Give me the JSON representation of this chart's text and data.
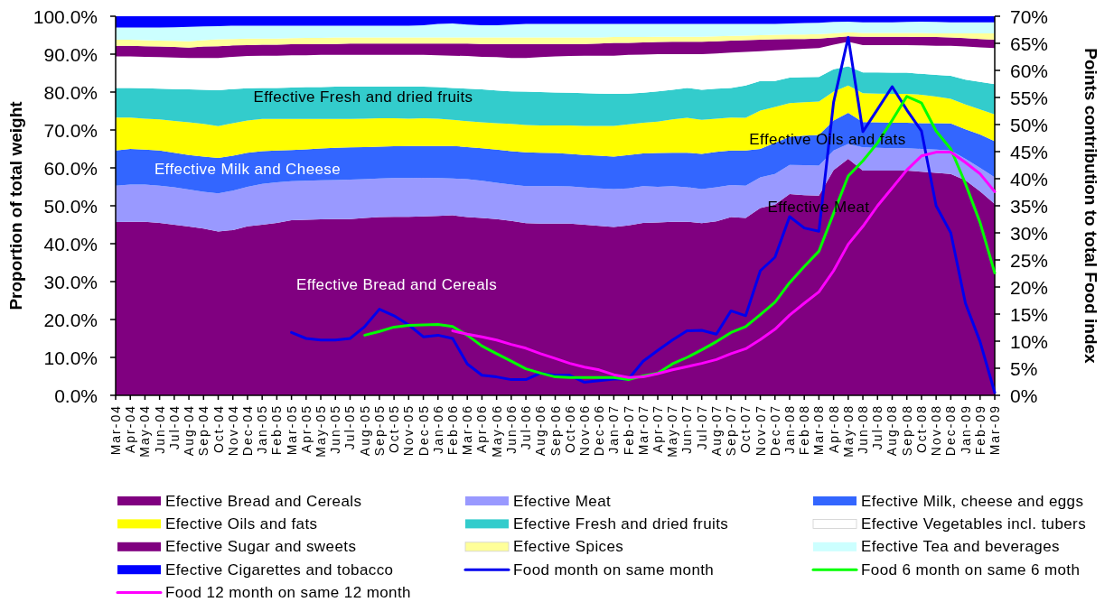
{
  "chart_data": {
    "type": "area",
    "stacked": true,
    "categories": [
      "Mar-04",
      "Apr-04",
      "May-04",
      "Jun-04",
      "Jul-04",
      "Aug-04",
      "Sep-04",
      "Oct-04",
      "Nov-04",
      "Dec-04",
      "Jan-05",
      "Feb-05",
      "Mar-05",
      "Apr-05",
      "May-05",
      "Jun-05",
      "Jul-05",
      "Aug-05",
      "Sep-05",
      "Oct-05",
      "Nov-05",
      "Dec-05",
      "Jan-06",
      "Feb-06",
      "Mar-06",
      "Apr-06",
      "May-06",
      "Jun-06",
      "Jul-06",
      "Aug-06",
      "Sep-06",
      "Oct-06",
      "Nov-06",
      "Dec-06",
      "Jan-07",
      "Feb-07",
      "Mar-07",
      "Apr-07",
      "May-07",
      "Jun-07",
      "Jul-07",
      "Aug-07",
      "Sep-07",
      "Oct-07",
      "Nov-07",
      "Dec-07",
      "Jan-08",
      "Feb-08",
      "Mar-08",
      "Apr-08",
      "May-08",
      "Jun-08",
      "Jul-08",
      "Aug-08",
      "Sep-08",
      "Oct-08",
      "Nov-08",
      "Dec-08",
      "Jan-09",
      "Feb-09",
      "Mar-09"
    ],
    "ylabel": "Proportion of total weight",
    "y2label": "Points contribution to total Food index",
    "ylim": [
      0,
      100
    ],
    "yticks": [
      {
        "value": 0,
        "label": "0.0%"
      },
      {
        "value": 10,
        "label": "10.0%"
      },
      {
        "value": 20,
        "label": "20.0%"
      },
      {
        "value": 30,
        "label": "30.0%"
      },
      {
        "value": 40,
        "label": "40.0%"
      },
      {
        "value": 50,
        "label": "50.0%"
      },
      {
        "value": 60,
        "label": "60.0%"
      },
      {
        "value": 70,
        "label": "70.0%"
      },
      {
        "value": 80,
        "label": "80.0%"
      },
      {
        "value": 90,
        "label": "90.0%"
      },
      {
        "value": 100,
        "label": "100.0%"
      }
    ],
    "y2lim": [
      0,
      70
    ],
    "y2ticks": [
      {
        "value": 0,
        "label": "0%"
      },
      {
        "value": 5,
        "label": "5%"
      },
      {
        "value": 10,
        "label": "10%"
      },
      {
        "value": 15,
        "label": "15%"
      },
      {
        "value": 20,
        "label": "20%"
      },
      {
        "value": 25,
        "label": "25%"
      },
      {
        "value": 30,
        "label": "30%"
      },
      {
        "value": 35,
        "label": "35%"
      },
      {
        "value": 40,
        "label": "40%"
      },
      {
        "value": 45,
        "label": "45%"
      },
      {
        "value": 50,
        "label": "50%"
      },
      {
        "value": 55,
        "label": "55%"
      },
      {
        "value": 60,
        "label": "60%"
      },
      {
        "value": 65,
        "label": "65%"
      },
      {
        "value": 70,
        "label": "70%"
      }
    ],
    "legend": "bottom",
    "annotations": [
      "Effective Fresh and dried fruits",
      "Effective Oils and fats",
      "Effective Milk and Cheese",
      "Effective Meat",
      "Effective Bread and Cereals"
    ],
    "series": [
      {
        "name": "Efective Bread and Cereals",
        "color": "#800080",
        "values": [
          45.7,
          45.8,
          45.8,
          45.5,
          45.0,
          44.5,
          44.0,
          43.2,
          43.6,
          44.6,
          45.0,
          45.5,
          46.2,
          46.3,
          46.4,
          46.5,
          46.5,
          46.8,
          47.0,
          47.1,
          47.1,
          47.2,
          47.3,
          47.5,
          47.0,
          46.8,
          46.5,
          46.0,
          45.4,
          45.3,
          45.3,
          45.3,
          45.0,
          44.7,
          44.4,
          44.8,
          45.5,
          45.6,
          45.8,
          45.8,
          45.4,
          45.9,
          47.0,
          46.8,
          49.4,
          50.3,
          53.1,
          52.8,
          52.7,
          59.4,
          62.4,
          59.3,
          59.3,
          59.3,
          59.3,
          59.0,
          58.7,
          58.4,
          56.7,
          53.8,
          50.5
        ]
      },
      {
        "name": "Efective Meat",
        "color": "#9999ff",
        "values": [
          9.6,
          9.8,
          9.8,
          9.8,
          9.9,
          9.8,
          9.7,
          10.1,
          10.4,
          10.4,
          10.8,
          10.7,
          10.3,
          10.3,
          10.3,
          10.3,
          10.4,
          10.2,
          10.2,
          10.2,
          10.2,
          10.2,
          10.0,
          9.7,
          10.0,
          9.8,
          9.6,
          9.6,
          9.8,
          9.9,
          9.9,
          9.8,
          9.8,
          9.9,
          10.0,
          9.8,
          9.7,
          9.4,
          9.4,
          9.1,
          9.0,
          9.0,
          8.5,
          8.5,
          8.1,
          8.1,
          7.7,
          7.9,
          7.9,
          5.2,
          3.9,
          6.1,
          6.0,
          5.9,
          5.9,
          6.0,
          6.1,
          6.2,
          5.7,
          6.2,
          7.0
        ]
      },
      {
        "name": "Efective Milk, cheese and eggs",
        "color": "#3366ff",
        "values": [
          9.3,
          9.4,
          9.2,
          9.3,
          9.1,
          9.1,
          9.3,
          9.3,
          9.2,
          9.0,
          8.6,
          8.4,
          8.2,
          8.3,
          8.4,
          8.5,
          8.5,
          8.5,
          8.4,
          8.4,
          8.5,
          8.4,
          8.5,
          8.6,
          8.5,
          8.6,
          8.7,
          8.8,
          8.9,
          8.8,
          8.7,
          8.6,
          8.6,
          8.6,
          8.6,
          8.8,
          8.6,
          8.9,
          8.8,
          9.1,
          9.3,
          9.3,
          9.1,
          9.3,
          7.5,
          8.2,
          7.4,
          7.8,
          8.1,
          7.9,
          8.2,
          6.7,
          6.7,
          6.7,
          6.7,
          6.8,
          7.0,
          7.1,
          7.8,
          8.8,
          9.5
        ]
      },
      {
        "name": "Efective Oils and fats",
        "color": "#ffff00",
        "values": [
          8.7,
          8.3,
          8.2,
          8.2,
          8.4,
          8.6,
          8.6,
          8.4,
          8.6,
          8.5,
          8.5,
          8.3,
          8.2,
          8.0,
          7.8,
          7.6,
          7.5,
          7.5,
          7.5,
          7.4,
          7.2,
          7.3,
          7.2,
          6.9,
          6.8,
          6.8,
          7.0,
          7.2,
          7.2,
          7.2,
          7.3,
          7.5,
          7.7,
          7.9,
          8.1,
          8.1,
          8.1,
          8.3,
          8.8,
          9.2,
          9.0,
          8.8,
          8.7,
          8.6,
          10.1,
          9.5,
          8.9,
          8.8,
          8.8,
          7.6,
          7.2,
          7.6,
          7.6,
          7.6,
          7.6,
          7.5,
          7.0,
          6.5,
          6.5,
          6.6,
          7.1
        ]
      },
      {
        "name": "Efective Fresh and dried fruits",
        "color": "#33cccc",
        "values": [
          7.8,
          7.8,
          8.0,
          8.1,
          8.4,
          8.7,
          9.0,
          9.5,
          9.0,
          8.5,
          8.2,
          8.2,
          8.3,
          8.4,
          8.4,
          8.5,
          8.5,
          8.4,
          8.3,
          8.3,
          8.4,
          8.3,
          8.3,
          8.4,
          8.6,
          8.7,
          8.6,
          8.6,
          8.8,
          8.8,
          8.7,
          8.6,
          8.6,
          8.5,
          8.4,
          8.1,
          7.9,
          8.0,
          7.8,
          7.9,
          7.9,
          7.9,
          7.8,
          8.5,
          7.8,
          6.8,
          6.7,
          6.6,
          6.5,
          5.9,
          5.1,
          5.5,
          5.6,
          5.6,
          5.6,
          5.5,
          5.7,
          6.1,
          6.6,
          7.3,
          8.0
        ]
      },
      {
        "name": "Efective Vegetables incl. tubers",
        "color": "#ffffff",
        "values": [
          8.3,
          8.3,
          8.3,
          8.3,
          8.3,
          8.3,
          8.4,
          8.5,
          8.5,
          8.5,
          8.5,
          8.5,
          8.5,
          8.4,
          8.5,
          8.4,
          8.4,
          8.4,
          8.4,
          8.4,
          8.4,
          8.4,
          8.4,
          8.5,
          8.6,
          8.6,
          8.8,
          8.8,
          8.9,
          9.2,
          9.5,
          9.7,
          9.9,
          10.0,
          10.1,
          10.2,
          10.1,
          9.8,
          9.4,
          8.9,
          9.4,
          9.3,
          9.3,
          8.9,
          7.9,
          8.1,
          7.4,
          7.5,
          7.6,
          6.5,
          6.5,
          7.2,
          7.2,
          7.3,
          7.3,
          7.5,
          7.7,
          7.9,
          8.7,
          9.1,
          9.5
        ]
      },
      {
        "name": "Efective Sugar and sweets",
        "color": "#800080",
        "values": [
          2.8,
          2.8,
          2.8,
          2.8,
          2.8,
          2.7,
          3.0,
          3.1,
          3.0,
          2.9,
          2.9,
          2.9,
          2.9,
          2.9,
          2.9,
          2.9,
          3.0,
          3.0,
          3.0,
          3.0,
          3.0,
          3.0,
          3.1,
          3.2,
          3.3,
          3.4,
          3.5,
          3.7,
          3.7,
          3.5,
          3.3,
          3.2,
          3.1,
          3.2,
          3.4,
          3.2,
          3.2,
          3.2,
          3.3,
          3.3,
          3.3,
          3.2,
          3.2,
          3.1,
          3.0,
          2.9,
          2.8,
          2.6,
          2.5,
          1.9,
          1.4,
          2.2,
          2.2,
          2.2,
          2.2,
          2.2,
          2.3,
          2.2,
          2.2,
          2.2,
          2.2
        ]
      },
      {
        "name": "Efective Spices",
        "color": "#ffff99",
        "values": [
          1.6,
          1.6,
          1.6,
          1.6,
          1.6,
          1.7,
          1.7,
          1.8,
          1.7,
          1.7,
          1.6,
          1.6,
          1.6,
          1.7,
          1.6,
          1.7,
          1.6,
          1.6,
          1.6,
          1.6,
          1.6,
          1.6,
          1.6,
          1.6,
          1.6,
          1.7,
          1.7,
          1.7,
          1.7,
          1.7,
          1.7,
          1.7,
          1.7,
          1.6,
          1.5,
          1.5,
          1.4,
          1.4,
          1.3,
          1.3,
          1.3,
          1.3,
          1.2,
          1.2,
          1.2,
          1.2,
          1.2,
          1.2,
          1.2,
          1.1,
          1.1,
          1.0,
          1.0,
          1.0,
          1.0,
          1.1,
          1.0,
          1.1,
          1.3,
          1.5,
          1.7
        ]
      },
      {
        "name": "Efective Tea and beverages",
        "color": "#ccffff",
        "values": [
          3.2,
          3.2,
          3.3,
          3.4,
          3.6,
          3.8,
          3.6,
          3.5,
          3.5,
          3.4,
          3.4,
          3.4,
          3.3,
          3.2,
          3.2,
          3.1,
          3.1,
          3.1,
          3.1,
          3.1,
          3.1,
          3.2,
          3.6,
          3.7,
          3.4,
          3.2,
          3.2,
          3.4,
          3.6,
          3.6,
          3.6,
          3.6,
          3.6,
          3.6,
          3.5,
          3.5,
          3.5,
          3.4,
          3.4,
          3.4,
          3.4,
          3.3,
          3.2,
          3.1,
          3.0,
          2.9,
          2.9,
          3.0,
          3.0,
          3.0,
          2.8,
          2.8,
          2.8,
          2.8,
          2.9,
          3.0,
          3.0,
          2.9,
          2.9,
          2.9,
          2.9
        ]
      },
      {
        "name": "Efective Cigarettes and tobacco",
        "color": "#0000ff",
        "values": [
          3.0,
          3.0,
          3.0,
          3.0,
          2.9,
          2.8,
          2.7,
          2.6,
          2.5,
          2.5,
          2.5,
          2.5,
          2.5,
          2.5,
          2.5,
          2.5,
          2.5,
          2.5,
          2.5,
          2.5,
          2.5,
          2.4,
          2.0,
          1.9,
          2.2,
          2.4,
          2.4,
          2.2,
          2.0,
          2.0,
          2.0,
          2.0,
          2.0,
          2.0,
          2.0,
          2.0,
          2.0,
          2.0,
          2.0,
          2.0,
          2.0,
          2.0,
          2.0,
          2.0,
          2.0,
          2.0,
          1.9,
          1.8,
          1.7,
          1.5,
          1.4,
          1.6,
          1.6,
          1.6,
          1.5,
          1.4,
          1.5,
          1.6,
          1.6,
          1.6,
          1.6
        ]
      },
      {
        "name": "Food month on same month",
        "type": "line",
        "axis": "y2",
        "color": "#0000ee",
        "values": [
          null,
          null,
          null,
          null,
          null,
          null,
          null,
          null,
          null,
          null,
          null,
          null,
          11.6,
          10.5,
          10.2,
          10.2,
          10.5,
          12.7,
          15.9,
          14.7,
          13.0,
          10.8,
          11.1,
          10.5,
          5.8,
          3.7,
          3.4,
          2.9,
          2.9,
          4.1,
          3.7,
          3.7,
          2.4,
          2.7,
          3.0,
          3.0,
          6.3,
          8.3,
          10.2,
          11.9,
          12.0,
          11.3,
          15.6,
          14.7,
          23.0,
          25.5,
          33.0,
          30.9,
          30.3,
          54.1,
          66.1,
          48.7,
          52.8,
          57.0,
          52.7,
          48.8,
          35.0,
          30.0,
          17.0,
          9.9,
          0.5
        ]
      },
      {
        "name": "Food 6 month on same 6 moth",
        "type": "line",
        "axis": "y2",
        "color": "#00ff00",
        "values": [
          null,
          null,
          null,
          null,
          null,
          null,
          null,
          null,
          null,
          null,
          null,
          null,
          null,
          null,
          null,
          null,
          null,
          11.1,
          11.8,
          12.6,
          12.9,
          13.0,
          13.1,
          12.7,
          11.1,
          9.1,
          7.7,
          6.3,
          4.9,
          4.1,
          3.4,
          3.3,
          3.3,
          3.3,
          3.3,
          2.9,
          3.6,
          4.1,
          5.8,
          7.0,
          8.4,
          9.9,
          11.6,
          12.7,
          14.9,
          17.2,
          20.8,
          23.8,
          26.6,
          33.6,
          40.5,
          43.3,
          46.6,
          50.8,
          55.2,
          54.0,
          48.8,
          45.5,
          39.1,
          31.9,
          22.6
        ]
      },
      {
        "name": "Food 12 month on same 12 month",
        "type": "line",
        "axis": "y2",
        "color": "#ff00ff",
        "values": [
          null,
          null,
          null,
          null,
          null,
          null,
          null,
          null,
          null,
          null,
          null,
          null,
          null,
          null,
          null,
          null,
          null,
          null,
          null,
          null,
          null,
          null,
          null,
          11.9,
          11.3,
          10.8,
          10.2,
          9.4,
          8.7,
          7.7,
          6.8,
          5.9,
          5.2,
          4.7,
          3.8,
          3.3,
          3.4,
          4.0,
          4.7,
          5.3,
          5.9,
          6.6,
          7.7,
          8.6,
          10.3,
          12.2,
          14.8,
          17.0,
          19.1,
          23.0,
          27.9,
          31.2,
          35.0,
          38.3,
          41.6,
          44.2,
          44.9,
          44.9,
          43.0,
          40.9,
          37.6
        ]
      }
    ]
  }
}
